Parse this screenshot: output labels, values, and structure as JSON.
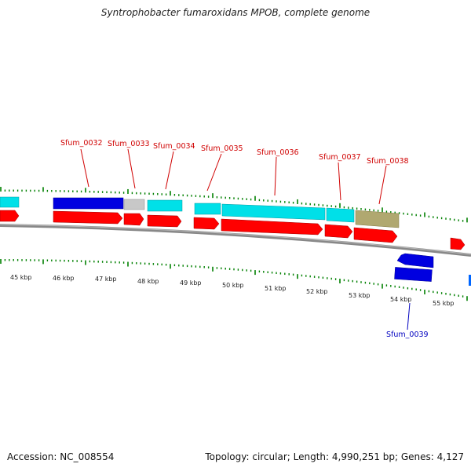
{
  "title": "Syntrophobacter fumaroxidans MPOB, complete genome",
  "accession": "Accession: NC_008554",
  "topology": "Topology: circular; Length: 4,990,251 bp; Genes: 4,127",
  "colors": {
    "red": "#ff0000",
    "blue": "#0000e0",
    "cyan": "#00e0e8",
    "gray": "#c8c8c8",
    "olive": "#b0a870",
    "tick": "#008000",
    "label_red": "#d00000",
    "label_blue": "#0000c0"
  },
  "scale_ticks": [
    "45 kbp",
    "46 kbp",
    "47 kbp",
    "48 kbp",
    "49 kbp",
    "50 kbp",
    "51 kbp",
    "52 kbp",
    "53 kbp",
    "54 kbp",
    "55 kbp"
  ],
  "gene_labels": [
    {
      "text": "Sfum_0032",
      "color": "red"
    },
    {
      "text": "Sfum_0033",
      "color": "red"
    },
    {
      "text": "Sfum_0034",
      "color": "red"
    },
    {
      "text": "Sfum_0035",
      "color": "red"
    },
    {
      "text": "Sfum_0036",
      "color": "red"
    },
    {
      "text": "Sfum_0037",
      "color": "red"
    },
    {
      "text": "Sfum_0038",
      "color": "red"
    },
    {
      "text": "Sfum_0039",
      "color": "blue"
    }
  ]
}
